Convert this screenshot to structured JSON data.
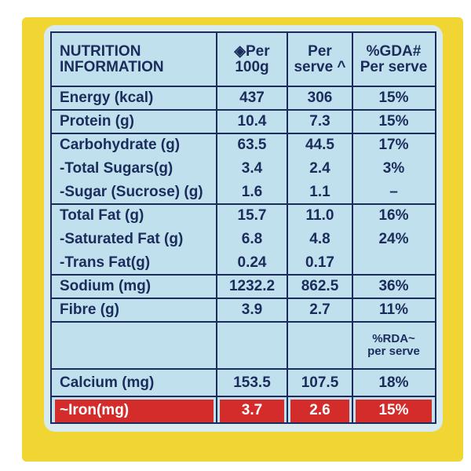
{
  "header": [
    [
      "NUTRITION",
      "INFORMATION"
    ],
    [
      "◈Per",
      "100g"
    ],
    [
      "Per",
      "serve ^"
    ],
    [
      "%GDA#",
      "Per serve"
    ]
  ],
  "groups": [
    [
      [
        "Energy (kcal)",
        "437",
        "306",
        "15%"
      ]
    ],
    [
      [
        "Protein (g)",
        "10.4",
        "7.3",
        "15%"
      ]
    ],
    [
      [
        "Carbohydrate (g)",
        "63.5",
        "44.5",
        "17%"
      ],
      [
        "-Total Sugars(g)",
        "3.4",
        "2.4",
        "3%"
      ],
      [
        "-Sugar (Sucrose) (g)",
        "1.6",
        "1.1",
        "–"
      ]
    ],
    [
      [
        "Total Fat (g)",
        "15.7",
        "11.0",
        "16%"
      ],
      [
        "-Saturated Fat (g)",
        "6.8",
        "4.8",
        "24%"
      ],
      [
        "-Trans Fat(g)",
        "0.24",
        "0.17",
        null
      ]
    ],
    [
      [
        "Sodium (mg)",
        "1232.2",
        "862.5",
        "36%"
      ]
    ],
    [
      [
        "Fibre (g)",
        "3.9",
        "2.7",
        "11%"
      ]
    ],
    [
      [
        null,
        null,
        null,
        [
          "%RDA~",
          "per serve"
        ]
      ]
    ],
    [
      [
        "Calcium (mg)",
        "153.5",
        "107.5",
        "18%"
      ]
    ],
    [
      [
        "~Iron(mg)",
        "3.7",
        "2.6",
        "15%"
      ]
    ]
  ]
}
